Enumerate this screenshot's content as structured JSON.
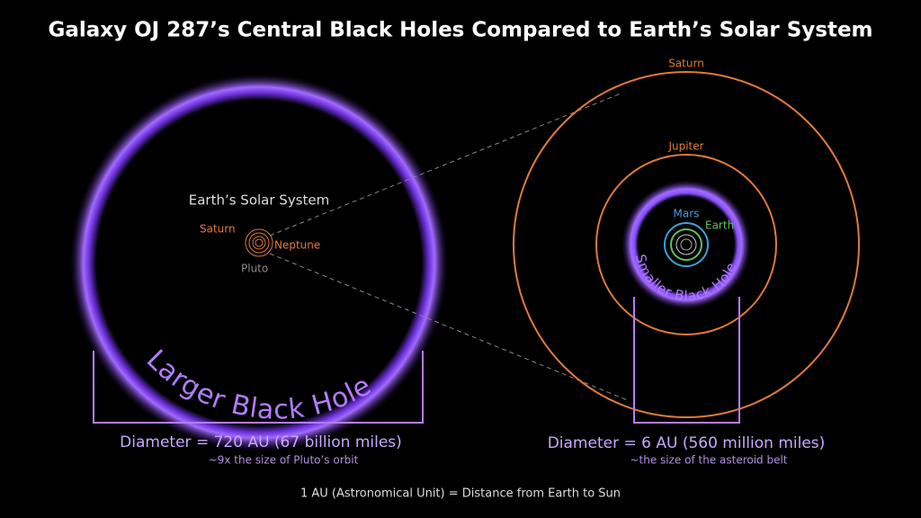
{
  "title": "Galaxy OJ 287’s Central Black Holes Compared to Earth’s Solar System",
  "larger": {
    "solar_system": "Earth’s Solar System",
    "saturn": "Saturn",
    "neptune": "Neptune",
    "pluto": "Pluto",
    "label": "Larger Black Hole",
    "diameter": "Diameter = 720 AU (67 billion miles)",
    "note": "~9x the size of Pluto’s orbit"
  },
  "smaller": {
    "saturn": "Saturn",
    "jupiter": "Jupiter",
    "mars": "Mars",
    "earth": "Earth",
    "label": "Smaller Black Hole",
    "diameter": "Diameter = 6 AU (560 million miles)",
    "note": "~the size of the asteroid belt"
  },
  "footer": "1 AU (Astronomical Unit) = Distance from Earth to Sun"
}
